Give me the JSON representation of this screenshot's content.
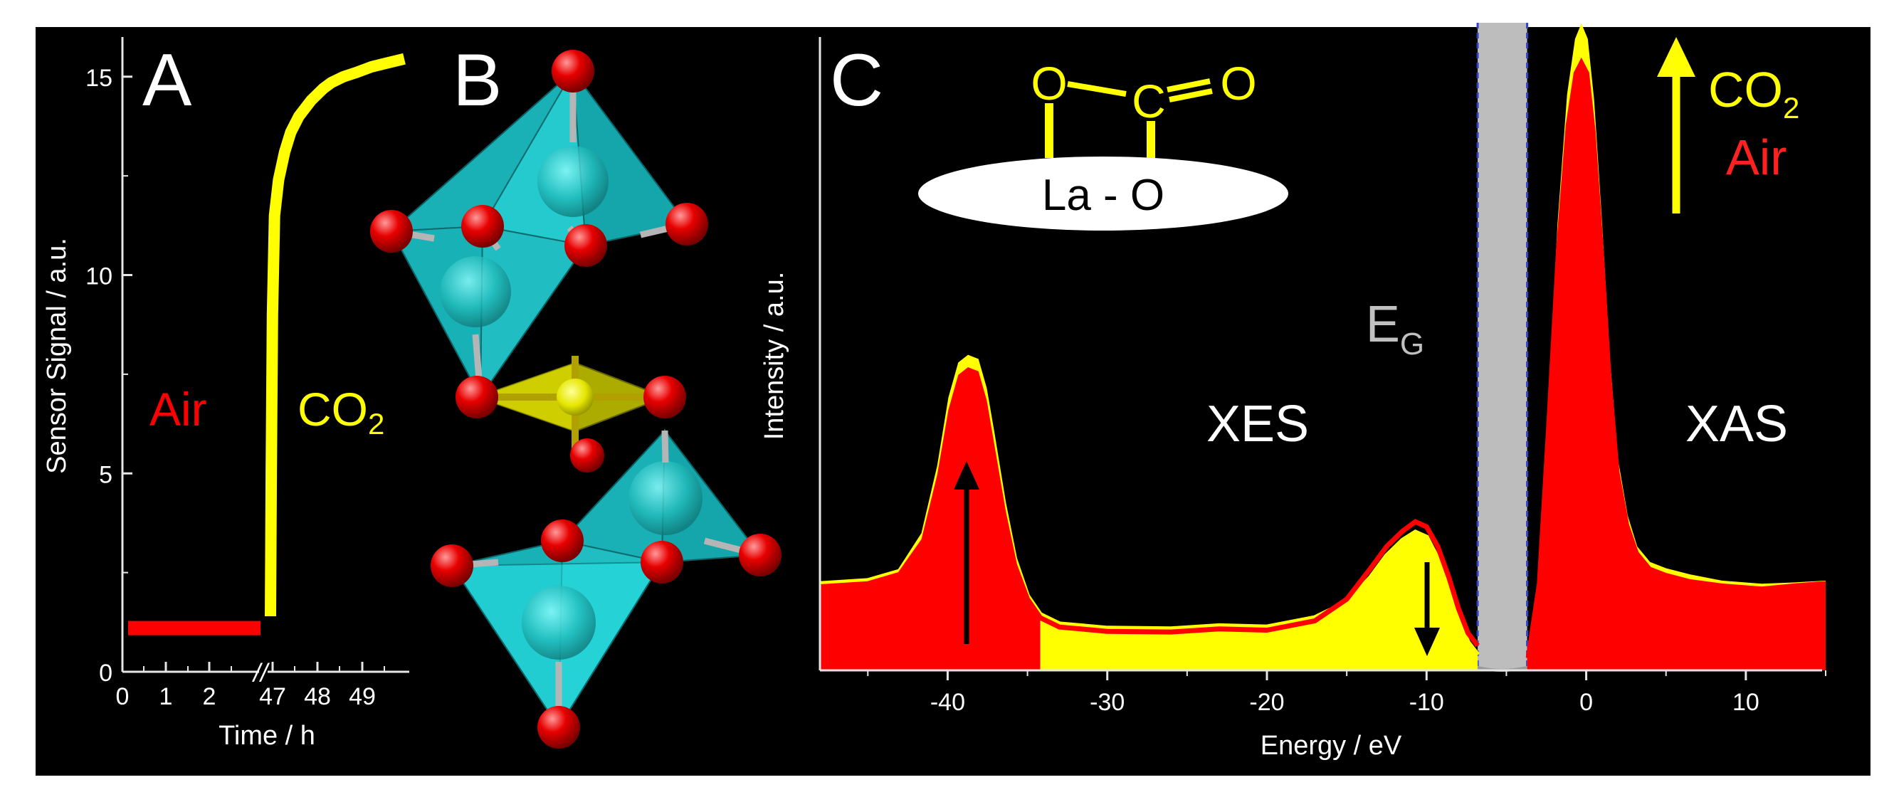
{
  "colors": {
    "background": "#000000",
    "air": "#ff0000",
    "co2": "#ffff00",
    "octahedron": "#1fd1d6",
    "atom_o": "#e00000",
    "gap": "#bdbdbd",
    "axis": "#e6e6e6",
    "text": "#ffffff"
  },
  "panels": {
    "a": {
      "letter": "A"
    },
    "b": {
      "letter": "B"
    },
    "c": {
      "letter": "C"
    }
  },
  "chart_data": [
    {
      "panel": "A",
      "type": "line",
      "title": "",
      "xlabel": "Time / h",
      "ylabel": "Sensor Signal / a.u.",
      "ylim": [
        0,
        16
      ],
      "yticks": [
        0,
        5,
        10,
        15
      ],
      "xticks_before_break": [
        0,
        1,
        2
      ],
      "xticks_after_break": [
        47,
        48,
        49
      ],
      "x_break": "//",
      "series": [
        {
          "name": "Air",
          "color": "#ff0000",
          "x": [
            0,
            0.5,
            1,
            1.5,
            2,
            2.5,
            2.7
          ],
          "y": [
            1.1,
            1.1,
            1.1,
            1.1,
            1.1,
            1.1,
            1.1
          ]
        },
        {
          "name": "CO2",
          "color": "#ffff00",
          "x": [
            46.5,
            46.52,
            46.55,
            46.6,
            46.7,
            46.85,
            47.0,
            47.2,
            47.5,
            47.8,
            48.0,
            48.3,
            48.6,
            49.0,
            49.4,
            49.8
          ],
          "y": [
            1.4,
            5.0,
            9.0,
            11.5,
            12.4,
            13.1,
            13.6,
            14.0,
            14.4,
            14.7,
            14.85,
            15.0,
            15.1,
            15.25,
            15.35,
            15.45
          ]
        }
      ],
      "annotations": [
        {
          "text": "Air",
          "color": "#ff0000"
        },
        {
          "text": "CO",
          "sub": "2",
          "color": "#ffff00"
        }
      ]
    },
    {
      "panel": "C",
      "type": "area",
      "title": "",
      "xlabel": "Energy / eV",
      "ylabel": "Intensity / a.u.",
      "xlim": [
        -48,
        15
      ],
      "xticks": [
        -40,
        -30,
        -20,
        -10,
        0,
        10
      ],
      "ylim": [
        0,
        1.0
      ],
      "band_gap": {
        "from": -6.8,
        "to": -3.7,
        "label": "E",
        "sub": "G"
      },
      "series": [
        {
          "name": "CO2",
          "color": "#ffff00",
          "x": [
            -48,
            -45,
            -43,
            -41.5,
            -40.5,
            -39.8,
            -39.2,
            -38.7,
            -38.2,
            -37.7,
            -37.2,
            -36.5,
            -35.8,
            -35,
            -34.2,
            -33,
            -30,
            -26,
            -23,
            -20,
            -17,
            -15,
            -13.5,
            -12.5,
            -11.5,
            -10.7,
            -10,
            -9.3,
            -8.6,
            -8,
            -7.4,
            -6.8
          ],
          "y": [
            0.14,
            0.145,
            0.16,
            0.22,
            0.33,
            0.44,
            0.495,
            0.505,
            0.5,
            0.455,
            0.38,
            0.27,
            0.18,
            0.12,
            0.09,
            0.075,
            0.068,
            0.067,
            0.072,
            0.07,
            0.085,
            0.11,
            0.15,
            0.185,
            0.21,
            0.223,
            0.215,
            0.18,
            0.13,
            0.08,
            0.045,
            0.025
          ]
        },
        {
          "name": "Air",
          "color": "#ff0000",
          "x": [
            -48,
            -45,
            -43,
            -41.5,
            -40.5,
            -39.8,
            -39.2,
            -38.7,
            -38.2,
            -37.7,
            -37.2,
            -36.5,
            -35.8,
            -35,
            -34.2,
            -33,
            -30,
            -26,
            -23,
            -20,
            -17,
            -15,
            -13.5,
            -12.5,
            -11.5,
            -10.7,
            -10,
            -9.3,
            -8.6,
            -8,
            -7.4,
            -6.8
          ],
          "y": [
            0.135,
            0.14,
            0.155,
            0.21,
            0.315,
            0.42,
            0.475,
            0.485,
            0.48,
            0.435,
            0.36,
            0.255,
            0.17,
            0.115,
            0.085,
            0.07,
            0.063,
            0.062,
            0.067,
            0.065,
            0.08,
            0.115,
            0.165,
            0.2,
            0.225,
            0.24,
            0.232,
            0.2,
            0.15,
            0.1,
            0.06,
            0.04
          ]
        },
        {
          "name": "CO2 XAS",
          "color": "#ffff00",
          "x": [
            -3.7,
            -3.0,
            -2.4,
            -1.8,
            -1.2,
            -0.7,
            -0.3,
            0.1,
            0.5,
            1.0,
            1.5,
            2.0,
            2.6,
            3.2,
            4.0,
            5.0,
            6.5,
            8.5,
            11,
            13,
            15
          ],
          "y": [
            0.02,
            0.15,
            0.42,
            0.72,
            0.93,
            1.02,
            1.045,
            1.02,
            0.92,
            0.72,
            0.5,
            0.34,
            0.25,
            0.2,
            0.175,
            0.165,
            0.155,
            0.145,
            0.14,
            0.142,
            0.145
          ]
        },
        {
          "name": "Air XAS",
          "color": "#ff0000",
          "x": [
            -3.7,
            -3.0,
            -2.4,
            -1.8,
            -1.2,
            -0.7,
            -0.3,
            0.1,
            0.5,
            1.0,
            1.5,
            2.0,
            2.6,
            3.2,
            4.0,
            5.0,
            6.5,
            8.5,
            11,
            13,
            15
          ],
          "y": [
            0.02,
            0.14,
            0.4,
            0.68,
            0.88,
            0.965,
            0.985,
            0.965,
            0.87,
            0.68,
            0.47,
            0.32,
            0.235,
            0.19,
            0.165,
            0.155,
            0.145,
            0.138,
            0.133,
            0.138,
            0.142
          ]
        }
      ],
      "annotations": [
        {
          "text": "XES",
          "color": "#ffffff"
        },
        {
          "text": "XAS",
          "color": "#ffffff"
        },
        {
          "text": "CO",
          "sub": "2",
          "color": "#ffff00"
        },
        {
          "text": "Air",
          "color": "#ff0000"
        }
      ],
      "inset": {
        "surface": "La - O",
        "atoms": [
          "O",
          "C",
          "O"
        ],
        "bond": "="
      }
    }
  ]
}
